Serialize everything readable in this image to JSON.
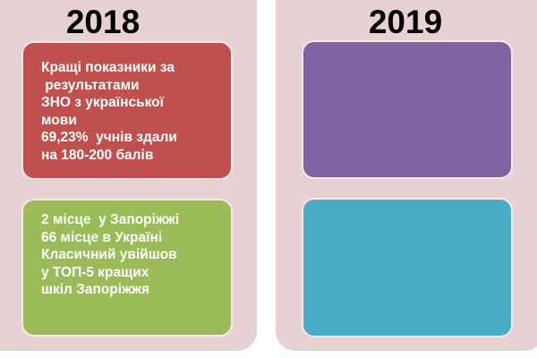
{
  "colors": {
    "panel": "#e8d1d3",
    "red": "#c0504d",
    "green": "#9bbb59",
    "purple": "#8064a2",
    "teal": "#4bacc6"
  },
  "columns": [
    {
      "year": "2018",
      "boxes": [
        {
          "text": "Кращі показники за\n результатами\nЗНО з української\nмови\n69,23%  учнів здали\nна 180-200 балів"
        },
        {
          "text": "2 місце  у Запоріжжі\n66 місце в Україні\nКласичний увійшов\nу ТОП-5 кращих\nшкіл Запоріжжя"
        }
      ]
    },
    {
      "year": "2019",
      "boxes": [
        {
          "text": ""
        },
        {
          "text": ""
        }
      ]
    }
  ]
}
